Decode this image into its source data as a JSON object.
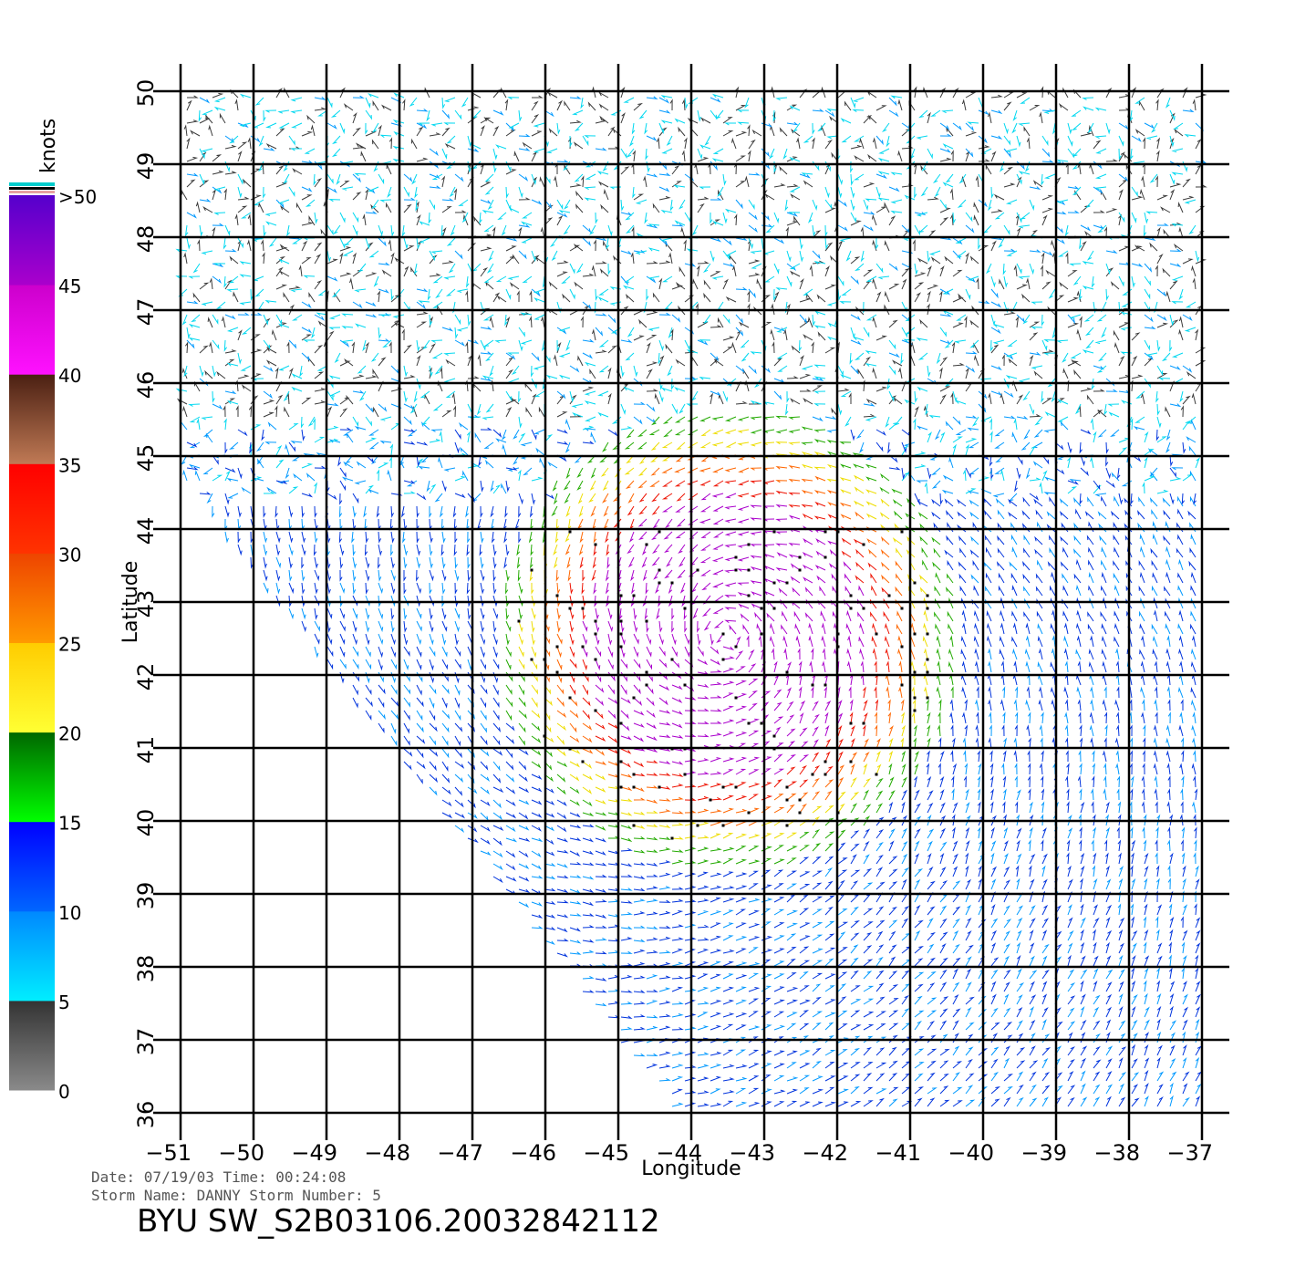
{
  "colorbar": {
    "unit": "knots",
    "labels": [
      "0",
      "5",
      "10",
      "15",
      "20",
      "25",
      "30",
      "35",
      "40",
      "45",
      ">50"
    ],
    "bands": [
      {
        "from": 0,
        "to": 5,
        "top": "#333333",
        "bottom": "#8a8a8a"
      },
      {
        "from": 5,
        "to": 10,
        "top": "#0088ff",
        "bottom": "#00eeff"
      },
      {
        "from": 10,
        "to": 15,
        "top": "#0000ff",
        "bottom": "#0066ff"
      },
      {
        "from": 15,
        "to": 20,
        "top": "#006600",
        "bottom": "#00ff00"
      },
      {
        "from": 20,
        "to": 25,
        "top": "#ffcc00",
        "bottom": "#ffff33"
      },
      {
        "from": 25,
        "to": 30,
        "top": "#ee4400",
        "bottom": "#ff9900"
      },
      {
        "from": 30,
        "to": 35,
        "top": "#ff0000",
        "bottom": "#ff3300"
      },
      {
        "from": 35,
        "to": 40,
        "top": "#4a1f12",
        "bottom": "#c07a55"
      },
      {
        "from": 40,
        "to": 45,
        "top": "#cc00cc",
        "bottom": "#ff11ff"
      },
      {
        "from": 45,
        "to": 50,
        "top": "#5500cc",
        "bottom": "#aa00cc"
      }
    ]
  },
  "map": {
    "lon_ticks": [
      "-51",
      "-50",
      "-49",
      "-48",
      "-47",
      "-46",
      "-45",
      "-44",
      "-43",
      "-42",
      "-41",
      "-40",
      "-39",
      "-38",
      "-37"
    ],
    "lat_ticks": [
      "36",
      "37",
      "38",
      "39",
      "40",
      "41",
      "42",
      "43",
      "44",
      "45",
      "46",
      "47",
      "48",
      "49",
      "50"
    ],
    "xlabel": "Longitude",
    "ylabel": "Latitude",
    "lon_range": [
      -51,
      -37
    ],
    "lat_range": [
      36,
      50
    ],
    "grid": true
  },
  "footer": {
    "date_line": "Date: 07/19/03   Time: 00:24:08",
    "storm_line": "Storm Name: DANNY   Storm Number: 5",
    "product_id": "BYU SW_S2B03106.20032842112"
  },
  "chart_data": {
    "type": "vector-field",
    "title": "",
    "xlabel": "Longitude",
    "ylabel": "Latitude",
    "xlim": [
      -51,
      -37
    ],
    "ylim": [
      36,
      50
    ],
    "unit": "knots",
    "storm_center": {
      "lon": -43.5,
      "lat": 42.5
    },
    "max_speed_knots": 45,
    "rain_flag_marker": "black dot"
  }
}
